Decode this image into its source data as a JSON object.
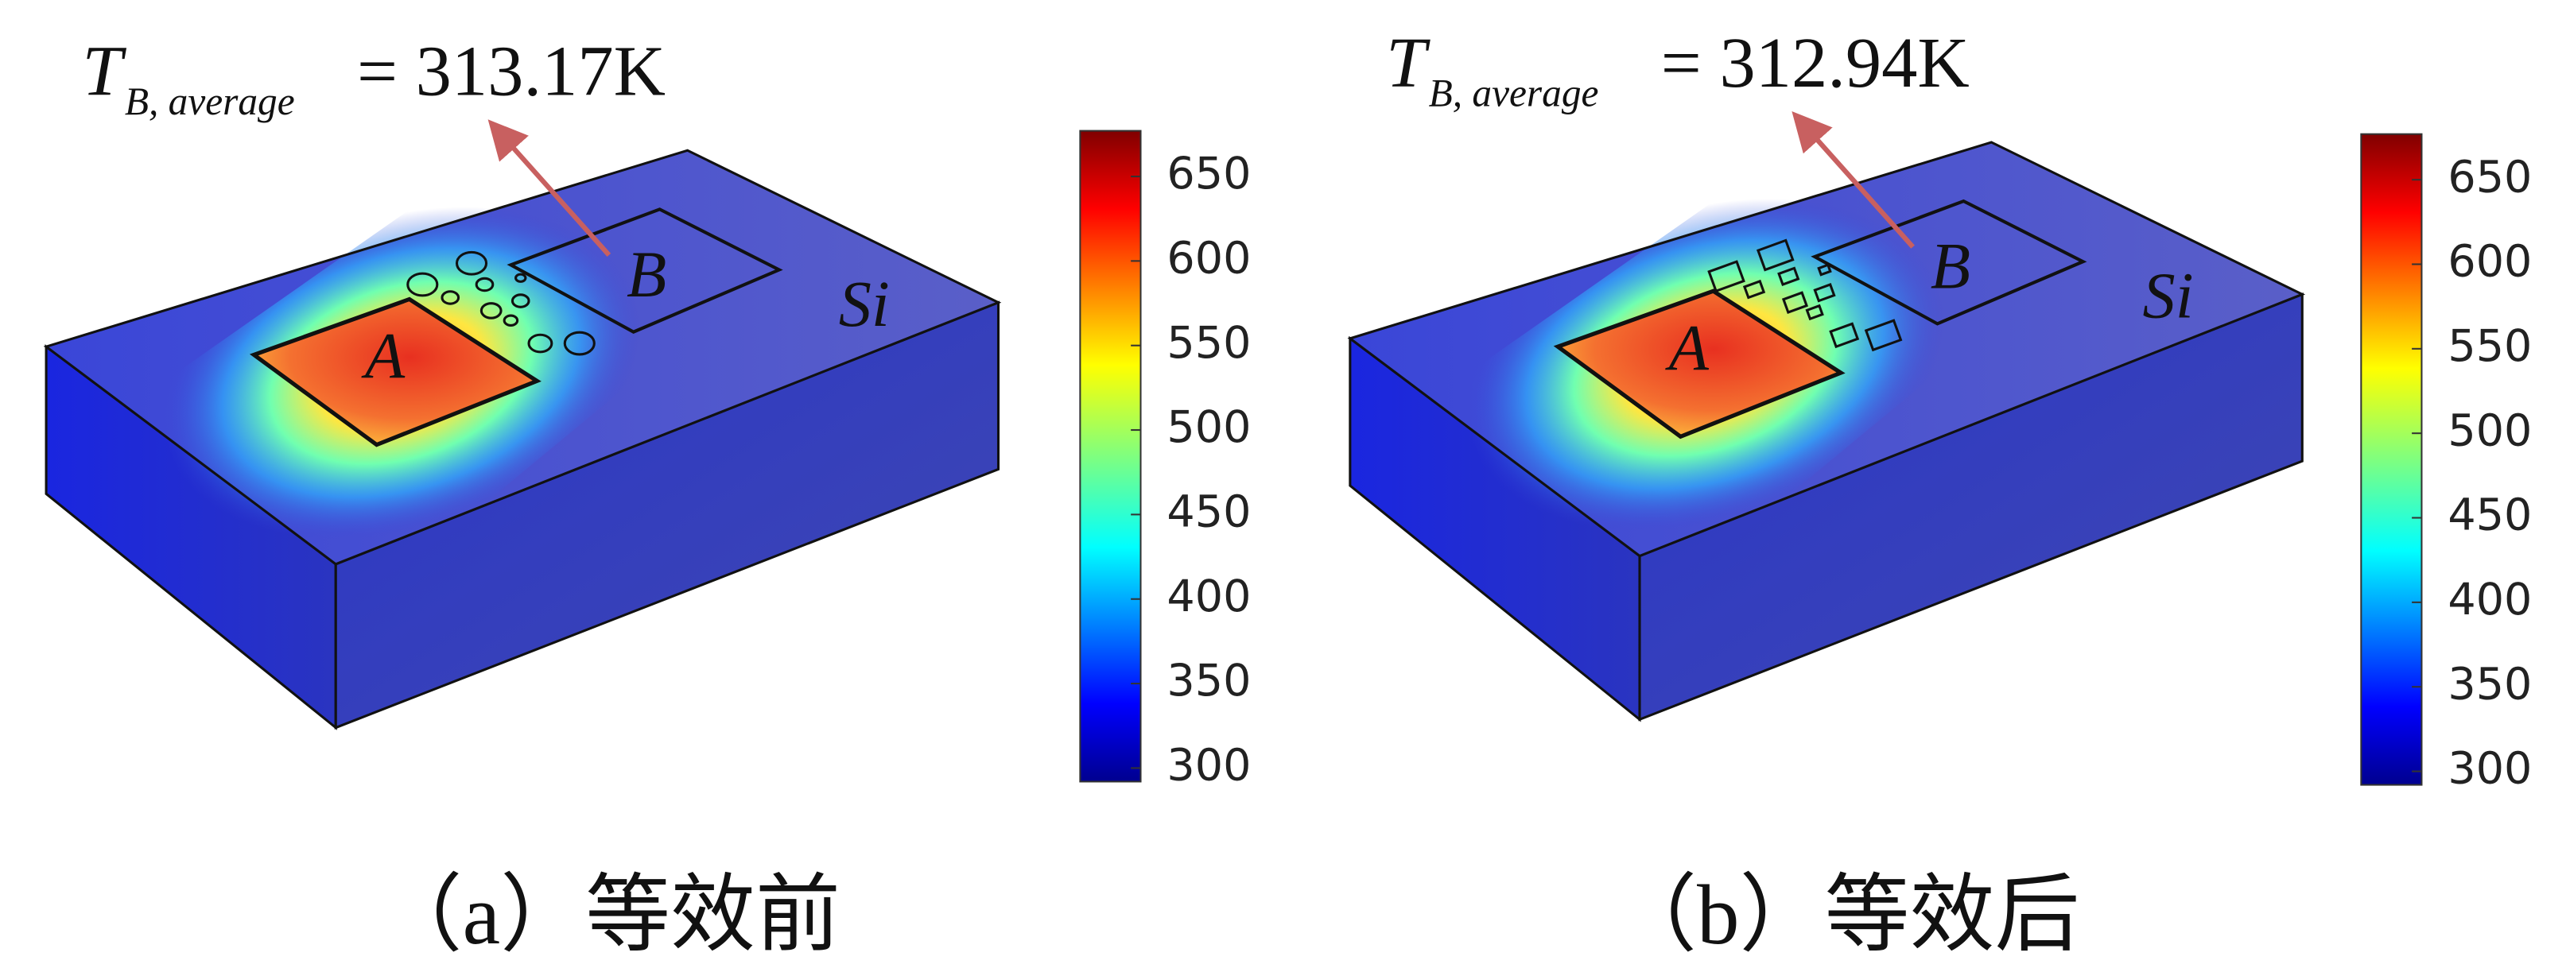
{
  "panels": [
    {
      "annotation": {
        "symbol": "T",
        "subscript": "B, average",
        "value": "= 313.17K"
      },
      "labels": [
        "A",
        "B",
        "Si"
      ],
      "colorbar": {
        "range": [
          292,
          677
        ],
        "ticks": [
          300,
          350,
          400,
          450,
          500,
          550,
          600,
          650
        ]
      },
      "caption": "（a）等效前"
    },
    {
      "annotation": {
        "symbol": "T",
        "subscript": "B, average",
        "value": "= 312.94K"
      },
      "labels": [
        "A",
        "B",
        "Si"
      ],
      "colorbar": {
        "range": [
          292,
          677
        ],
        "ticks": [
          300,
          350,
          400,
          450,
          500,
          550,
          600,
          650
        ]
      },
      "caption": "（b）等效后"
    }
  ]
}
